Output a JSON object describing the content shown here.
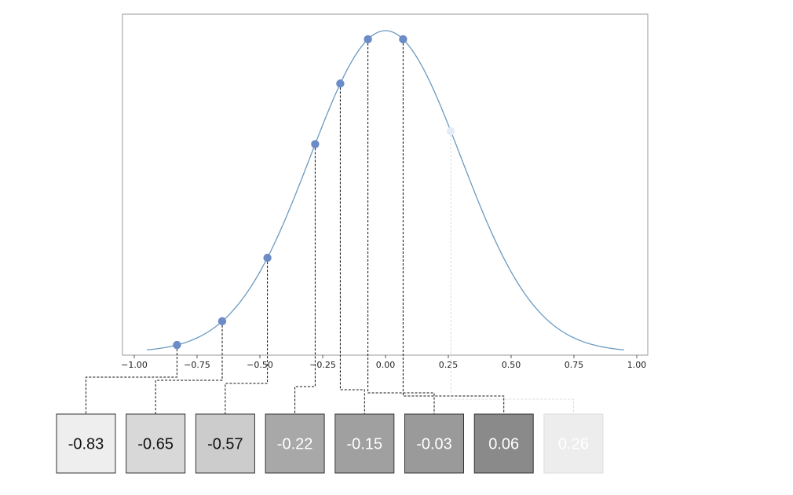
{
  "chart_data": {
    "type": "line",
    "title": "",
    "xlabel": "",
    "ylabel": "",
    "xlim": [
      -1.0,
      1.0
    ],
    "xticks": [
      -1.0,
      -0.75,
      -0.5,
      -0.25,
      0.0,
      0.25,
      0.5,
      0.75,
      1.0
    ],
    "xtick_labels": [
      "−1.00",
      "−0.75",
      "−0.50",
      "−0.25",
      "0.00",
      "0.25",
      "0.50",
      "0.75",
      "1.00"
    ],
    "curve": {
      "shape": "gaussian",
      "mean": 0.0,
      "sigma": 0.3,
      "x_range": [
        -0.95,
        0.95
      ]
    },
    "points": [
      {
        "x": -0.83,
        "label": "-0.83",
        "shade": "#eeeeee",
        "text_color": "#111111",
        "faded": false
      },
      {
        "x": -0.65,
        "label": "-0.65",
        "shade": "#d8d8d8",
        "text_color": "#111111",
        "faded": false
      },
      {
        "x": -0.47,
        "label": "-0.57",
        "shade": "#cccccc",
        "text_color": "#111111",
        "faded": false
      },
      {
        "x": -0.28,
        "label": "-0.22",
        "shade": "#a8a8a8",
        "text_color": "#ffffff",
        "faded": false
      },
      {
        "x": -0.18,
        "label": "-0.15",
        "shade": "#a0a0a0",
        "text_color": "#ffffff",
        "faded": false
      },
      {
        "x": -0.07,
        "label": "-0.03",
        "shade": "#9a9a9a",
        "text_color": "#ffffff",
        "faded": false
      },
      {
        "x": 0.07,
        "label": "0.06",
        "shade": "#8a8a8a",
        "text_color": "#ffffff",
        "faded": false
      },
      {
        "x": 0.26,
        "label": "0.26",
        "shade": "#ededed",
        "text_color": "#ffffff",
        "faded": true
      }
    ],
    "grid": false,
    "colors": {
      "curve": "#6a9ac1",
      "point": "#6b8cc7",
      "faded_point": "#e6ecf7",
      "axis_frame": "#999999"
    }
  }
}
